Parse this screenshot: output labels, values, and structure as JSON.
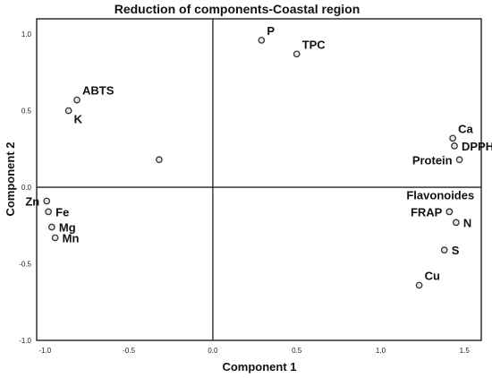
{
  "chart_data": {
    "type": "scatter",
    "title": "Reduction of components-Coastal region",
    "xlabel": "Component 1",
    "ylabel": "Component 2",
    "xlim": [
      -1.05,
      1.6
    ],
    "ylim": [
      -1.0,
      1.1
    ],
    "xticks": [
      {
        "value": -1.0,
        "label": "-1.0"
      },
      {
        "value": -0.5,
        "label": "-0.5"
      },
      {
        "value": 0.0,
        "label": "0.0"
      },
      {
        "value": 0.5,
        "label": "0.5"
      },
      {
        "value": 1.0,
        "label": "1.0"
      },
      {
        "value": 1.5,
        "label": "1.5"
      }
    ],
    "yticks": [
      {
        "value": 1.0,
        "label": "1.0"
      },
      {
        "value": 0.5,
        "label": "0.5"
      },
      {
        "value": 0.0,
        "label": "0.0"
      },
      {
        "value": -0.5,
        "label": "-0.5"
      },
      {
        "value": -1.0,
        "label": "-1.0"
      }
    ],
    "grid": false,
    "reference_lines": {
      "x": 0,
      "y": 0
    },
    "points": [
      {
        "label": "P",
        "x": 0.29,
        "y": 0.96,
        "label_pos": "above-right"
      },
      {
        "label": "TPC",
        "x": 0.5,
        "y": 0.87,
        "label_pos": "above-right"
      },
      {
        "label": "ABTS",
        "x": -0.81,
        "y": 0.57,
        "label_pos": "above-right"
      },
      {
        "label": "K",
        "x": -0.86,
        "y": 0.5,
        "label_pos": "below-right"
      },
      {
        "label": "",
        "x": -0.32,
        "y": 0.18,
        "label_pos": "none"
      },
      {
        "label": "Ca",
        "x": 1.43,
        "y": 0.32,
        "label_pos": "above-right"
      },
      {
        "label": "DPPH",
        "x": 1.44,
        "y": 0.27,
        "label_pos": "right"
      },
      {
        "label": "Protein",
        "x": 1.47,
        "y": 0.18,
        "label_pos": "left"
      },
      {
        "label": "Zn",
        "x": -0.99,
        "y": -0.09,
        "label_pos": "left"
      },
      {
        "label": "Fe",
        "x": -0.98,
        "y": -0.16,
        "label_pos": "right"
      },
      {
        "label": "Mg",
        "x": -0.96,
        "y": -0.26,
        "label_pos": "right"
      },
      {
        "label": "Mn",
        "x": -0.94,
        "y": -0.33,
        "label_pos": "right"
      },
      {
        "label": "Flavonoides",
        "x": 1.41,
        "y": -0.16,
        "label_pos": "above-left"
      },
      {
        "label": "FRAP",
        "x": 1.41,
        "y": -0.16,
        "label_pos": "left"
      },
      {
        "label": "N",
        "x": 1.45,
        "y": -0.23,
        "label_pos": "right"
      },
      {
        "label": "S",
        "x": 1.38,
        "y": -0.41,
        "label_pos": "right"
      },
      {
        "label": "Cu",
        "x": 1.23,
        "y": -0.64,
        "label_pos": "above-right"
      }
    ]
  }
}
